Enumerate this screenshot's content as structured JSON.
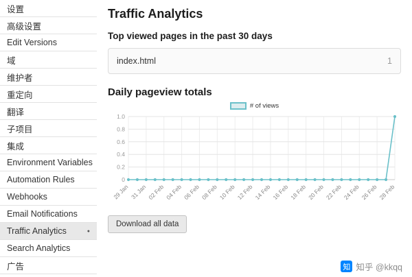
{
  "sidebar": {
    "items": [
      {
        "label": "设置",
        "selected": false
      },
      {
        "label": "高级设置",
        "selected": false
      },
      {
        "label": "Edit Versions",
        "selected": false
      },
      {
        "label": "域",
        "selected": false
      },
      {
        "label": "维护者",
        "selected": false
      },
      {
        "label": "重定向",
        "selected": false
      },
      {
        "label": "翻译",
        "selected": false
      },
      {
        "label": "子项目",
        "selected": false
      },
      {
        "label": "集成",
        "selected": false
      },
      {
        "label": "Environment Variables",
        "selected": false
      },
      {
        "label": "Automation Rules",
        "selected": false
      },
      {
        "label": "Webhooks",
        "selected": false
      },
      {
        "label": "Email Notifications",
        "selected": false
      },
      {
        "label": "Traffic Analytics",
        "selected": true
      },
      {
        "label": "Search Analytics",
        "selected": false
      },
      {
        "label": "广告",
        "selected": false
      }
    ]
  },
  "main": {
    "title": "Traffic Analytics",
    "subtitle": "Top viewed pages in the past 30 days",
    "top_pages": [
      {
        "page": "index.html",
        "views": "1"
      }
    ],
    "section_title": "Daily pageview totals",
    "download_button": "Download all data"
  },
  "watermark": {
    "logo_char": "知",
    "text": "知乎 @kkqq",
    "logo_color": "#0084ff"
  },
  "chart_data": {
    "type": "line",
    "title": "Daily pageview totals",
    "legend": [
      {
        "name": "# of views",
        "color": "#6ac0c9",
        "fill": "#dcedef"
      }
    ],
    "legend_position": "top-center",
    "grid": true,
    "x": [
      "29 Jan",
      "30 Jan",
      "31 Jan",
      "01 Feb",
      "02 Feb",
      "03 Feb",
      "04 Feb",
      "05 Feb",
      "06 Feb",
      "07 Feb",
      "08 Feb",
      "09 Feb",
      "10 Feb",
      "11 Feb",
      "12 Feb",
      "13 Feb",
      "14 Feb",
      "15 Feb",
      "16 Feb",
      "17 Feb",
      "18 Feb",
      "19 Feb",
      "20 Feb",
      "21 Feb",
      "22 Feb",
      "23 Feb",
      "24 Feb",
      "25 Feb",
      "26 Feb",
      "27 Feb",
      "28 Feb"
    ],
    "xtick_every": 2,
    "series": [
      {
        "name": "# of views",
        "values": [
          0,
          0,
          0,
          0,
          0,
          0,
          0,
          0,
          0,
          0,
          0,
          0,
          0,
          0,
          0,
          0,
          0,
          0,
          0,
          0,
          0,
          0,
          0,
          0,
          0,
          0,
          0,
          0,
          0,
          0,
          1
        ]
      }
    ],
    "ylim": [
      0,
      1
    ],
    "yticks": [
      {
        "label": "1.0",
        "value": 1.0
      },
      {
        "label": "0.8",
        "value": 0.8
      },
      {
        "label": "0.6",
        "value": 0.6
      },
      {
        "label": "0.4",
        "value": 0.4
      },
      {
        "label": "0.2",
        "value": 0.2
      },
      {
        "label": "0",
        "value": 0.0
      }
    ]
  }
}
